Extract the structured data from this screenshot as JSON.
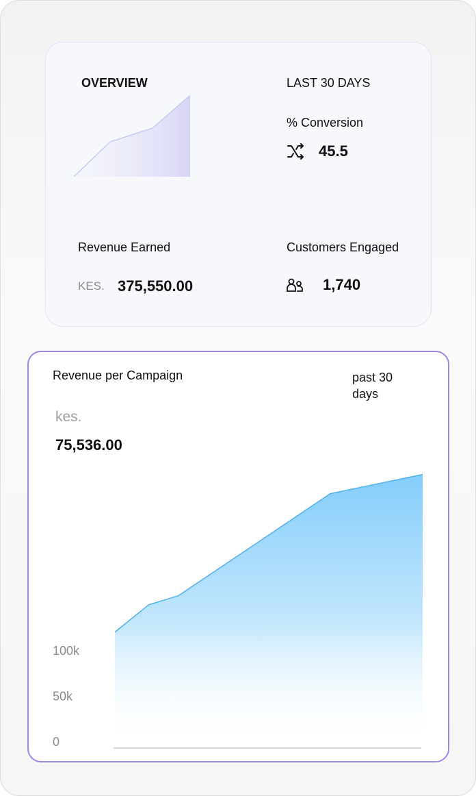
{
  "overview": {
    "title": "OVERVIEW",
    "period": "LAST 30 DAYS",
    "conversion": {
      "label": "% Conversion",
      "value": "45.5"
    },
    "revenue": {
      "label": "Revenue Earned",
      "currency": "KES.",
      "value": "375,550.00"
    },
    "customers": {
      "label": "Customers Engaged",
      "value": "1,740"
    }
  },
  "campaign": {
    "title": "Revenue per Campaign",
    "period": "past 30 days",
    "currency": "kes.",
    "value": "75,536.00"
  },
  "chart_data": {
    "type": "area",
    "color": "#4db3ec",
    "x": [
      0,
      3.3,
      6.2,
      21,
      30
    ],
    "xlim": [
      0,
      30
    ],
    "values": [
      125000,
      155000,
      165000,
      277000,
      298000
    ],
    "ylim": [
      0,
      300000
    ],
    "yticks": [
      0,
      {
        "value": 50000,
        "label": "50k"
      },
      {
        "value": 100000,
        "label": "100k"
      }
    ]
  }
}
